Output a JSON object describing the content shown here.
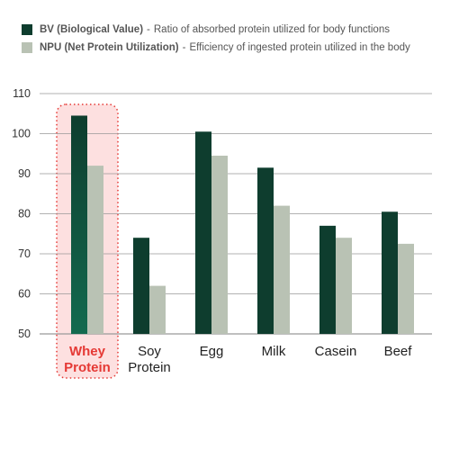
{
  "legend": [
    {
      "name": "BV (Biological Value)",
      "separator": "-",
      "description": "Ratio of absorbed protein utilized for body functions",
      "color": "#0e3d2e"
    },
    {
      "name": "NPU (Net Protein Utilization)",
      "separator": "-",
      "description": "Efficiency of ingested protein utilized in the body",
      "color": "#b9c2b4"
    }
  ],
  "colors": {
    "highlight_fill": "#fde0e0",
    "highlight_border": "#e53935",
    "highlight_text": "#e53935",
    "gridline": "#999999",
    "bv_highlight_gradient_end": "#136a4f"
  },
  "chart_data": {
    "type": "bar",
    "categories": [
      [
        "Whey",
        "Protein"
      ],
      [
        "Soy",
        "Protein"
      ],
      [
        "Egg"
      ],
      [
        "Milk"
      ],
      [
        "Casein"
      ],
      [
        "Beef"
      ]
    ],
    "series": [
      {
        "name": "BV (Biological Value)",
        "values": [
          104.5,
          74,
          100.5,
          91.5,
          77,
          80.5
        ]
      },
      {
        "name": "NPU (Net Protein Utilization)",
        "values": [
          92,
          62,
          94.5,
          82,
          74,
          72.5
        ]
      }
    ],
    "ylim": [
      50,
      110
    ],
    "yticks": [
      50,
      60,
      70,
      80,
      90,
      100,
      110
    ],
    "grid": true,
    "highlight_category": 0,
    "legend_position": "top-left"
  }
}
